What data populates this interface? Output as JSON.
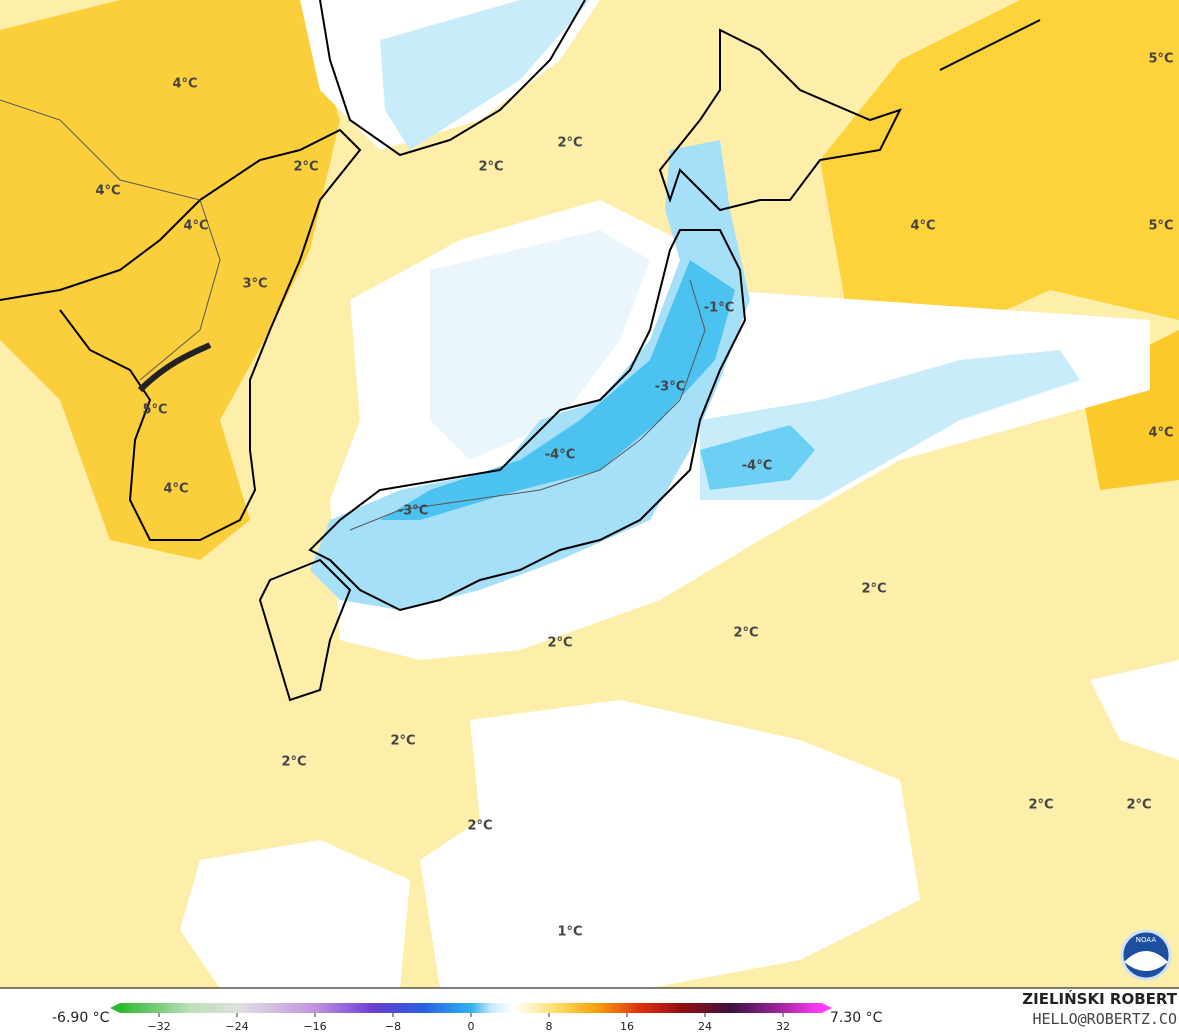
{
  "map": {
    "contour_labels": [
      "4°C",
      "4°C",
      "4°C",
      "3°C",
      "2°C",
      "2°C",
      "2°C",
      "5°C",
      "4°C",
      "5°C",
      "-1°C",
      "-3°C",
      "5°C",
      "4°C",
      "-4°C",
      "-4°C",
      "4°C",
      "-3°C",
      "2°C",
      "2°C",
      "2°C",
      "2°C",
      "2°C",
      "2°C",
      "2°C",
      "2°C",
      "1°C"
    ]
  },
  "colorbar": {
    "min_label": "-6.90 °C",
    "max_label": "7.30 °C",
    "lim": [
      -36,
      36
    ],
    "ticks": [
      {
        "value": -32,
        "label": "−32"
      },
      {
        "value": -24,
        "label": "−24"
      },
      {
        "value": -16,
        "label": "−16"
      },
      {
        "value": -8,
        "label": "−8"
      },
      0,
      8,
      16,
      24,
      32
    ]
  },
  "credit": {
    "author": "ZIELIŃSKI ROBERT",
    "contact": "HELLO@ROBERTZ.CO",
    "logo": "NOAA"
  }
}
